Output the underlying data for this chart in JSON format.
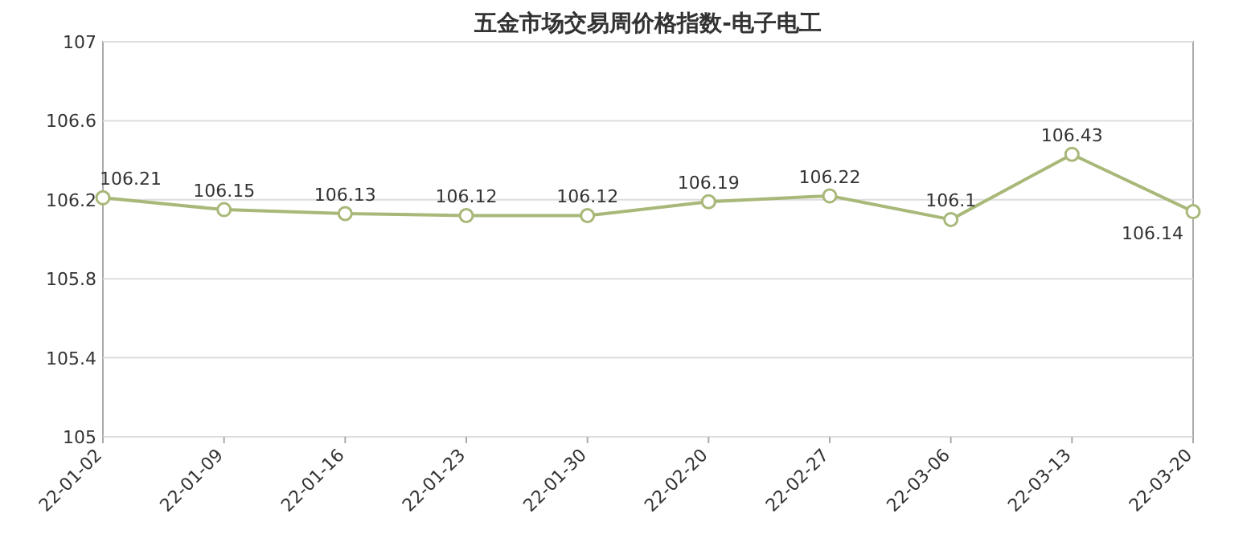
{
  "chart_data": {
    "type": "line",
    "title": "五金市场交易周价格指数-电子电工",
    "categories": [
      "22-01-02",
      "22-01-09",
      "22-01-16",
      "22-01-23",
      "22-01-30",
      "22-02-20",
      "22-02-27",
      "22-03-06",
      "22-03-13",
      "22-03-20"
    ],
    "values": [
      106.21,
      106.15,
      106.13,
      106.12,
      106.12,
      106.19,
      106.22,
      106.1,
      106.43,
      106.14
    ],
    "color": "#a8b878",
    "ylim": [
      105,
      107
    ],
    "yticks": [
      105,
      105.4,
      105.8,
      106.2,
      106.6,
      107
    ],
    "grid": "y",
    "marker": "circle",
    "data_labels": true
  }
}
